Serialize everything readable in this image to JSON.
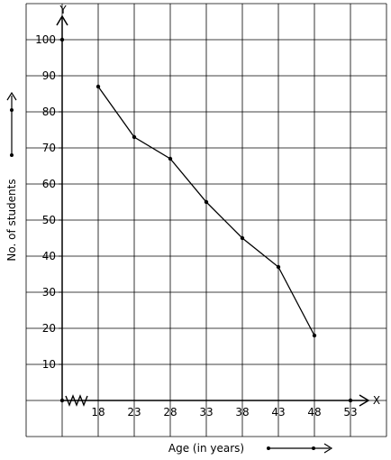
{
  "chart_data": {
    "type": "line",
    "xlabel": "Age (in years)",
    "ylabel": "No. of students",
    "x_axis_letter": "X",
    "y_axis_letter": "Y",
    "x_ticks": [
      18,
      23,
      28,
      33,
      38,
      43,
      48,
      53
    ],
    "y_ticks": [
      10,
      20,
      30,
      40,
      50,
      60,
      70,
      80,
      90,
      100
    ],
    "xlim": [
      13,
      53
    ],
    "ylim": [
      0,
      100
    ],
    "grid": true,
    "x_axis_break": true,
    "series": [
      {
        "x": [
          18,
          23,
          28,
          33,
          38,
          43,
          48
        ],
        "y": [
          87,
          73,
          67,
          55,
          45,
          37,
          18
        ]
      }
    ]
  }
}
